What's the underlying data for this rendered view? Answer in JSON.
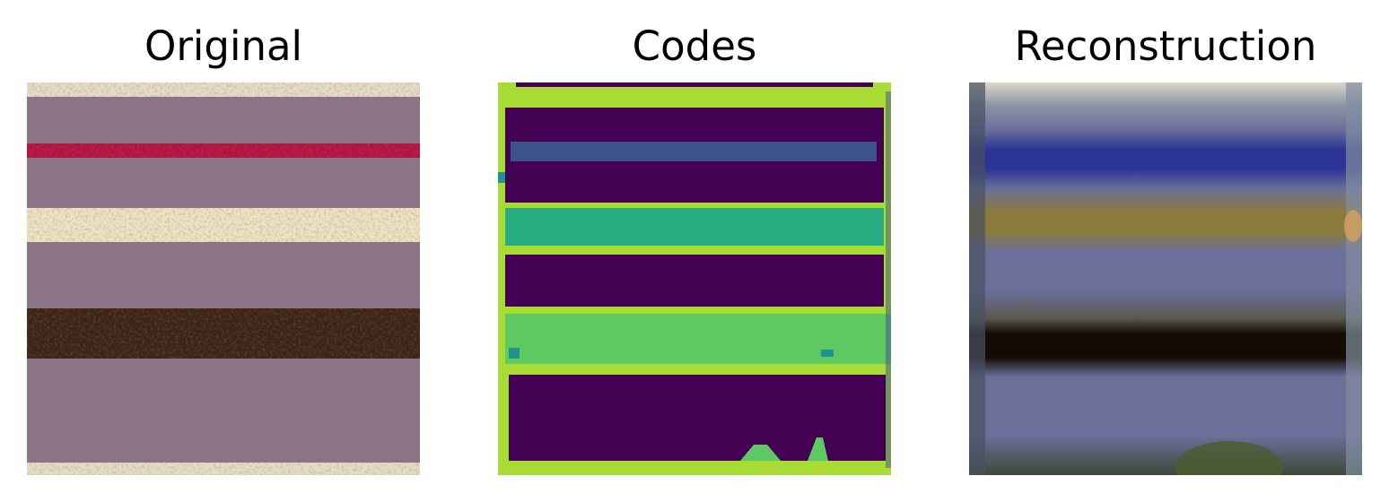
{
  "panels": {
    "original": {
      "title": "Original"
    },
    "codes": {
      "title": "Codes"
    },
    "reconstruction": {
      "title": "Reconstruction"
    }
  },
  "colors": {
    "mauve": "#8b7488",
    "cream": "#eee2c1",
    "red": "#b5123f",
    "dark_brown": "#3d2416",
    "viridis_dark": "#440154",
    "viridis_blue": "#3b528b",
    "viridis_teal": "#21918c",
    "viridis_green": "#27ad81",
    "viridis_lightgreen": "#5ec962",
    "viridis_yellowgreen": "#a8db34",
    "recon_slate": "#6b6f99",
    "recon_blue": "#2c3595",
    "recon_olive": "#8a7b3d",
    "recon_black": "#140c04"
  }
}
